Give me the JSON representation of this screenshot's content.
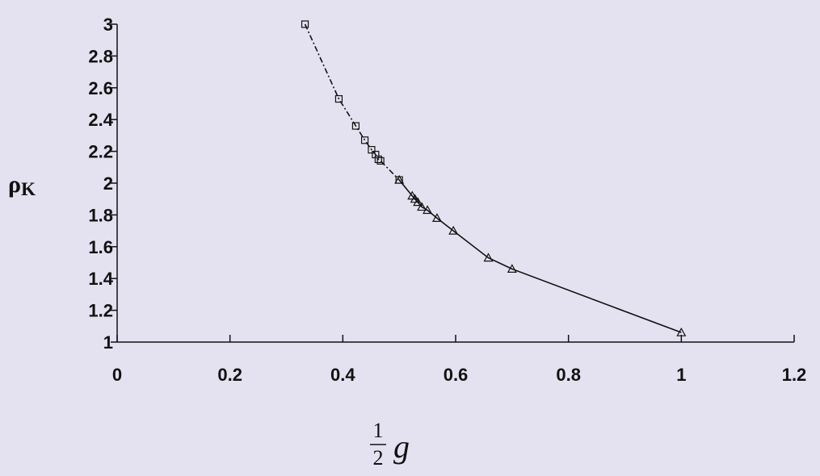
{
  "chart_data": {
    "type": "scatter",
    "title": "",
    "ylabel": "ρ",
    "ylabel_subscript": "K",
    "xlabel_fraction_numerator": "1",
    "xlabel_fraction_denominator": "2",
    "xlabel_variable": "g",
    "xlim": [
      0,
      1.2
    ],
    "ylim": [
      1,
      3
    ],
    "x_ticks": [
      0,
      0.2,
      0.4,
      0.6,
      0.8,
      1,
      1.2
    ],
    "x_tick_labels": [
      "0",
      "0.2",
      "0.4",
      "0.6",
      "0.8",
      "1",
      "1.2"
    ],
    "y_ticks": [
      1,
      1.2,
      1.4,
      1.6,
      1.8,
      2,
      2.2,
      2.4,
      2.6,
      2.8,
      3
    ],
    "y_tick_labels": [
      "1",
      "1.2",
      "1.4",
      "1.6",
      "1.8",
      "2",
      "2.2",
      "2.4",
      "2.6",
      "2.8",
      "3"
    ],
    "grid": false,
    "legend": false,
    "colors": {
      "line": "#111111",
      "background": "#e4e2f0"
    },
    "series": [
      {
        "marker": "square",
        "line_style": "dash-dot",
        "x": [
          0.333,
          0.393,
          0.423,
          0.439,
          0.451,
          0.458,
          0.463,
          0.467,
          0.5
        ],
        "y": [
          3.0,
          2.53,
          2.36,
          2.27,
          2.21,
          2.18,
          2.15,
          2.14,
          2.02
        ]
      },
      {
        "marker": "triangle",
        "line_style": "solid",
        "x": [
          0.5,
          0.523,
          0.528,
          0.533,
          0.54,
          0.55,
          0.567,
          0.596,
          0.658,
          0.7,
          1.0
        ],
        "y": [
          2.02,
          1.92,
          1.9,
          1.88,
          1.85,
          1.83,
          1.78,
          1.7,
          1.53,
          1.46,
          1.06
        ]
      }
    ]
  }
}
